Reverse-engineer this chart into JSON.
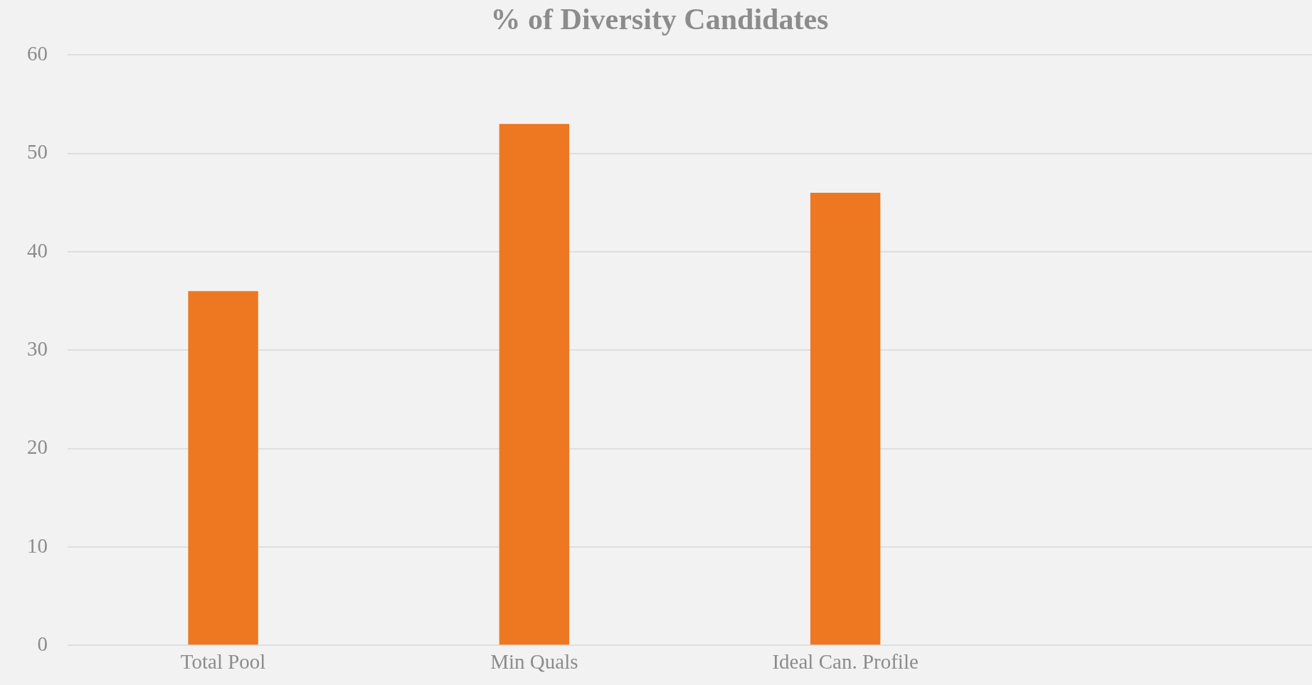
{
  "chart_data": {
    "type": "bar",
    "title": "% of Diversity Candidates",
    "categories": [
      "Total Pool",
      "Min Quals",
      "Ideal Can. Profile",
      null
    ],
    "values": [
      36,
      53,
      46,
      null
    ],
    "color": "#ee7722",
    "ylim": [
      0,
      60
    ],
    "yticks": [
      0,
      10,
      20,
      30,
      40,
      50,
      60
    ],
    "grid": "y",
    "legend": false
  }
}
